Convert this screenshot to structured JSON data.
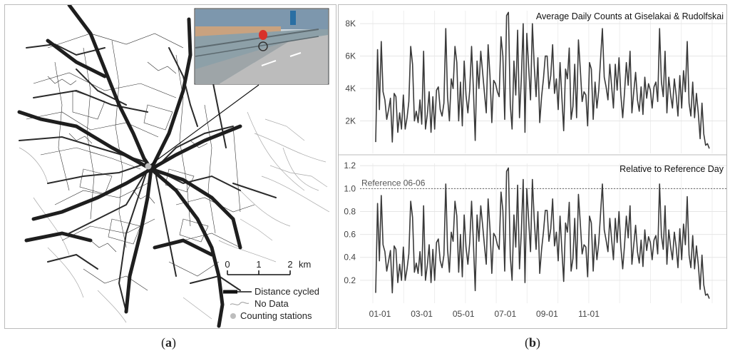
{
  "figure": {
    "caption_a": "a",
    "caption_b": "b"
  },
  "map": {
    "scale": {
      "labels": [
        "0",
        "1",
        "2"
      ],
      "unit": "km"
    },
    "legend": [
      {
        "label": "Distance cycled",
        "symbol": "thick-line"
      },
      {
        "label": "No Data",
        "symbol": "thin-line"
      },
      {
        "label": "Counting stations",
        "symbol": "dot"
      }
    ],
    "colors": {
      "network": "#222222",
      "nodata": "#9a9a9a",
      "station": "#bdbdbd"
    }
  },
  "chart_data": [
    {
      "type": "line",
      "title": "Average Daily Counts at Giselakai & Rudolfskai",
      "x_ticks": [
        "01-01",
        "03-01",
        "05-01",
        "07-01",
        "09-01",
        "11-01"
      ],
      "y_ticks": [
        "2K",
        "4K",
        "6K",
        "8K"
      ],
      "ylim": [
        0,
        8800
      ],
      "series": [
        {
          "values": [
            700,
            6400,
            2700,
            6900,
            3800,
            3300,
            2100,
            2700,
            3400,
            700,
            3700,
            3500,
            1300,
            2500,
            1500,
            3600,
            1500,
            2200,
            3200,
            6600,
            5500,
            2000,
            2600,
            1900,
            3300,
            1800,
            6300,
            1500,
            2400,
            3800,
            1300,
            3500,
            1500,
            3900,
            4100,
            2700,
            2300,
            3100,
            7700,
            3500,
            2000,
            4600,
            4000,
            6600,
            5600,
            2000,
            4400,
            1700,
            5700,
            3600,
            2500,
            3900,
            6600,
            4000,
            800,
            5700,
            4000,
            6300,
            5000,
            3700,
            2500,
            6700,
            4800,
            1900,
            4500,
            4300,
            3800,
            3500,
            7200,
            6000,
            2100,
            8500,
            8700,
            3000,
            1500,
            5700,
            3600,
            7600,
            2200,
            4600,
            8000,
            1300,
            7400,
            5300,
            3300,
            8000,
            5400,
            3500,
            5900,
            1900,
            3500,
            4600,
            6000,
            6000,
            4000,
            4800,
            6700,
            3700,
            4600,
            2700,
            5600,
            3500,
            1400,
            5200,
            4600,
            6500,
            2100,
            2900,
            5500,
            2200,
            7000,
            5200,
            3200,
            3800,
            3600,
            1700,
            5600,
            5200,
            2100,
            4400,
            2800,
            3900,
            5800,
            7700,
            4700,
            4100,
            3300,
            5500,
            4100,
            2800,
            5500,
            3900,
            5900,
            3600,
            2200,
            3800,
            5600,
            4200,
            6300,
            2500,
            3800,
            5000,
            3300,
            2600,
            4100,
            2400,
            4700,
            3400,
            4300,
            3900,
            2800,
            4100,
            4400,
            3200,
            7700,
            4400,
            3500,
            6300,
            2500,
            4700,
            3600,
            2800,
            4600,
            3600,
            2300,
            4800,
            2800,
            5100,
            3800,
            6900,
            3100,
            2300,
            4400,
            2200,
            3700,
            2500,
            900,
            3100,
            1200,
            500,
            600,
            300
          ]
        }
      ]
    },
    {
      "type": "line",
      "title": "Relative to Reference Day",
      "x_ticks": [
        "01-01",
        "03-01",
        "05-01",
        "07-01",
        "09-01",
        "11-01"
      ],
      "y_ticks": [
        "0.2",
        "0.4",
        "0.6",
        "0.8",
        "1.0",
        "1.2"
      ],
      "ylim": [
        0,
        1.22
      ],
      "reference": {
        "label": "Reference 06-06",
        "value": 1.0
      },
      "series": [
        {
          "values": [
            0.09,
            0.87,
            0.37,
            0.94,
            0.51,
            0.45,
            0.28,
            0.37,
            0.46,
            0.09,
            0.5,
            0.47,
            0.18,
            0.34,
            0.2,
            0.49,
            0.2,
            0.3,
            0.43,
            0.89,
            0.75,
            0.27,
            0.35,
            0.26,
            0.45,
            0.24,
            0.85,
            0.2,
            0.33,
            0.51,
            0.18,
            0.47,
            0.2,
            0.53,
            0.56,
            0.37,
            0.31,
            0.42,
            1.04,
            0.47,
            0.27,
            0.62,
            0.54,
            0.89,
            0.76,
            0.27,
            0.6,
            0.23,
            0.77,
            0.49,
            0.34,
            0.53,
            0.89,
            0.54,
            0.11,
            0.77,
            0.54,
            0.85,
            0.68,
            0.5,
            0.34,
            0.91,
            0.65,
            0.26,
            0.61,
            0.58,
            0.51,
            0.47,
            0.97,
            0.81,
            0.28,
            1.15,
            1.18,
            0.41,
            0.2,
            0.77,
            0.49,
            1.03,
            0.3,
            0.62,
            1.08,
            0.18,
            1.0,
            0.72,
            0.45,
            1.08,
            0.73,
            0.47,
            0.8,
            0.26,
            0.47,
            0.62,
            0.81,
            0.81,
            0.54,
            0.65,
            0.91,
            0.5,
            0.62,
            0.37,
            0.76,
            0.47,
            0.19,
            0.7,
            0.62,
            0.88,
            0.28,
            0.39,
            0.74,
            0.3,
            0.95,
            0.7,
            0.43,
            0.51,
            0.49,
            0.23,
            0.76,
            0.7,
            0.28,
            0.6,
            0.38,
            0.53,
            0.78,
            1.04,
            0.64,
            0.55,
            0.45,
            0.74,
            0.55,
            0.38,
            0.74,
            0.53,
            0.8,
            0.49,
            0.3,
            0.51,
            0.76,
            0.57,
            0.85,
            0.34,
            0.51,
            0.68,
            0.45,
            0.35,
            0.55,
            0.32,
            0.64,
            0.46,
            0.58,
            0.53,
            0.38,
            0.55,
            0.59,
            0.43,
            1.04,
            0.59,
            0.47,
            0.85,
            0.34,
            0.64,
            0.49,
            0.38,
            0.62,
            0.49,
            0.31,
            0.65,
            0.38,
            0.69,
            0.51,
            0.93,
            0.42,
            0.31,
            0.59,
            0.3,
            0.5,
            0.34,
            0.12,
            0.42,
            0.16,
            0.07,
            0.08,
            0.04
          ]
        }
      ]
    }
  ]
}
